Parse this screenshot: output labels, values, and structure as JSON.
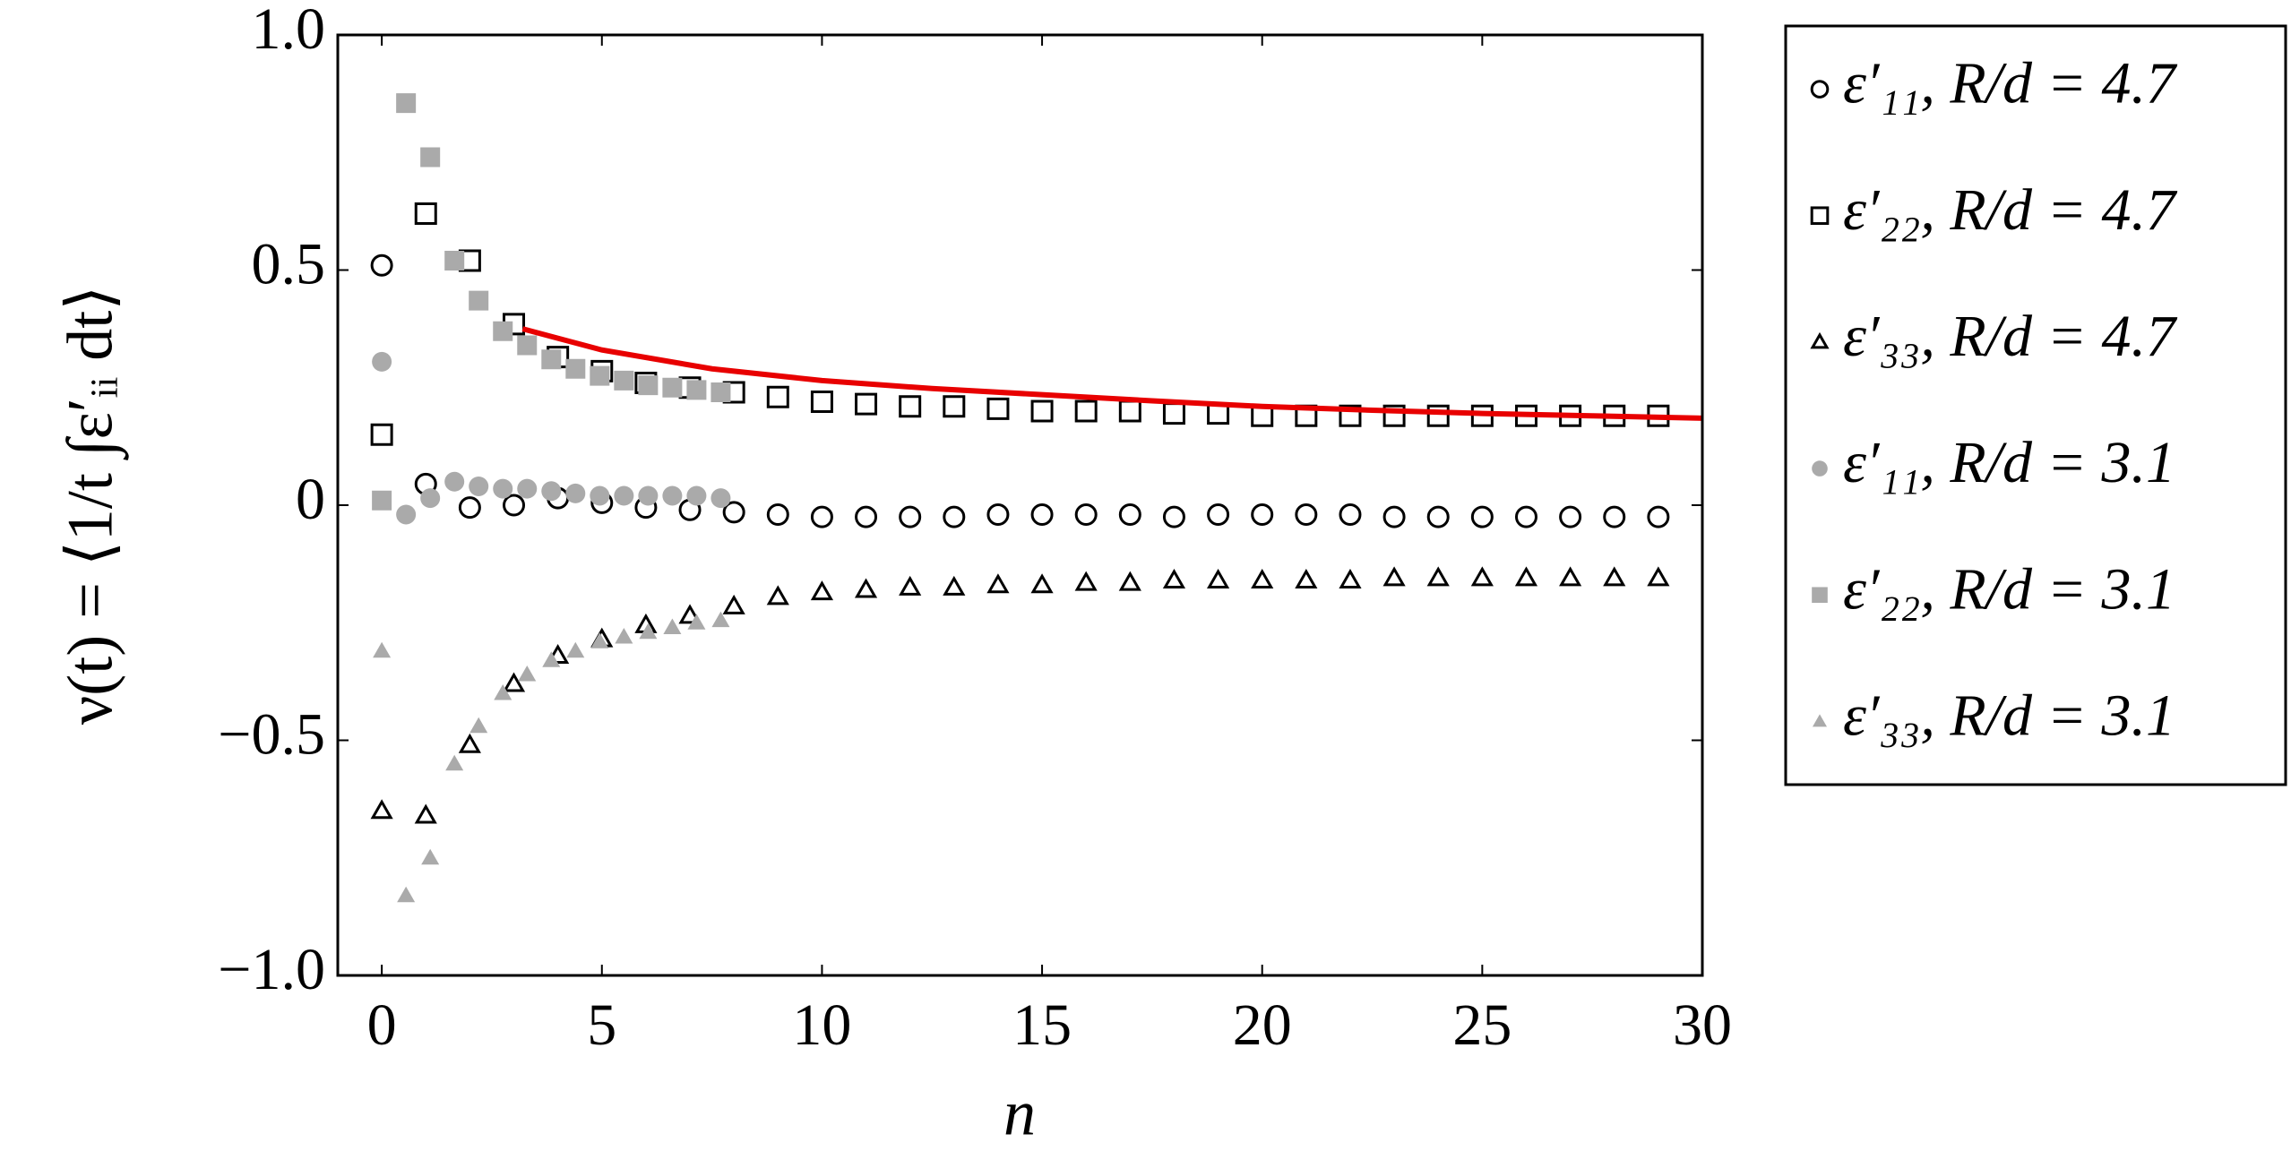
{
  "chart_data": {
    "type": "scatter",
    "x_label": "n",
    "y_label": "ν(t) = ⟨1/t ∫ε′ᵢᵢ dt⟩",
    "xlim": [
      -1,
      30
    ],
    "ylim": [
      -1,
      1
    ],
    "xticks": [
      0,
      5,
      10,
      15,
      20,
      25,
      30
    ],
    "yticks": [
      {
        "value": -1,
        "label": "−1.0"
      },
      {
        "value": -0.5,
        "label": "−0.5"
      },
      0,
      0.5,
      {
        "value": 1,
        "label": "1.0"
      }
    ],
    "legend": "outside-right",
    "series": [
      {
        "name": "ε′₁₁, R/d = 4.7",
        "marker": "circle",
        "filled": false,
        "color": "#000000",
        "x": [
          0,
          1,
          2,
          3,
          4,
          5,
          6,
          7,
          8,
          9,
          10,
          11,
          12,
          13,
          14,
          15,
          16,
          17,
          18,
          19,
          20,
          21,
          22,
          23,
          24,
          25,
          26,
          27,
          28,
          29
        ],
        "values": [
          0.51,
          0.045,
          -0.005,
          0,
          0.015,
          0.005,
          -0.005,
          -0.01,
          -0.015,
          -0.02,
          -0.025,
          -0.025,
          -0.025,
          -0.025,
          -0.02,
          -0.02,
          -0.02,
          -0.02,
          -0.025,
          -0.02,
          -0.02,
          -0.02,
          -0.02,
          -0.025,
          -0.025,
          -0.025,
          -0.025,
          -0.025,
          -0.025,
          -0.025
        ]
      },
      {
        "name": "ε′₂₂, R/d = 4.7",
        "marker": "square",
        "filled": false,
        "color": "#000000",
        "x": [
          0,
          1,
          2,
          3,
          4,
          5,
          6,
          7,
          8,
          9,
          10,
          11,
          12,
          13,
          14,
          15,
          16,
          17,
          18,
          19,
          20,
          21,
          22,
          23,
          24,
          25,
          26,
          27,
          28,
          29
        ],
        "values": [
          0.15,
          0.62,
          0.52,
          0.385,
          0.315,
          0.285,
          0.26,
          0.25,
          0.24,
          0.23,
          0.22,
          0.215,
          0.21,
          0.21,
          0.205,
          0.2,
          0.2,
          0.2,
          0.195,
          0.195,
          0.19,
          0.19,
          0.19,
          0.19,
          0.19,
          0.19,
          0.19,
          0.19,
          0.19,
          0.19
        ]
      },
      {
        "name": "ε′₃₃, R/d = 4.7",
        "marker": "triangle",
        "filled": false,
        "color": "#000000",
        "x": [
          0,
          1,
          2,
          3,
          4,
          5,
          6,
          7,
          8,
          9,
          10,
          11,
          12,
          13,
          14,
          15,
          16,
          17,
          18,
          19,
          20,
          21,
          22,
          23,
          24,
          25,
          26,
          27,
          28,
          29
        ],
        "values": [
          -0.65,
          -0.66,
          -0.51,
          -0.38,
          -0.32,
          -0.285,
          -0.255,
          -0.235,
          -0.215,
          -0.195,
          -0.185,
          -0.18,
          -0.175,
          -0.175,
          -0.17,
          -0.17,
          -0.165,
          -0.165,
          -0.16,
          -0.16,
          -0.16,
          -0.16,
          -0.16,
          -0.155,
          -0.155,
          -0.155,
          -0.155,
          -0.155,
          -0.155,
          -0.155
        ]
      },
      {
        "name": "ε′₁₁, R/d = 3.1",
        "marker": "circle",
        "filled": true,
        "color": "#aaaaaa",
        "x": [
          0,
          0.55,
          1.1,
          1.65,
          2.2,
          2.75,
          3.3,
          3.85,
          4.4,
          4.95,
          5.5,
          6.05,
          6.6,
          7.15,
          7.7
        ],
        "values": [
          0.305,
          -0.02,
          0.015,
          0.05,
          0.04,
          0.035,
          0.035,
          0.03,
          0.025,
          0.02,
          0.02,
          0.02,
          0.02,
          0.02,
          0.015
        ]
      },
      {
        "name": "ε′₂₂, R/d = 3.1",
        "marker": "square",
        "filled": true,
        "color": "#aaaaaa",
        "x": [
          0,
          0.55,
          1.1,
          1.65,
          2.2,
          2.75,
          3.3,
          3.85,
          4.4,
          4.95,
          5.5,
          6.05,
          6.6,
          7.15,
          7.7
        ],
        "values": [
          0.01,
          0.855,
          0.74,
          0.52,
          0.435,
          0.37,
          0.34,
          0.31,
          0.29,
          0.275,
          0.265,
          0.255,
          0.25,
          0.245,
          0.24
        ]
      },
      {
        "name": "ε′₃₃, R/d = 3.1",
        "marker": "triangle",
        "filled": true,
        "color": "#aaaaaa",
        "x": [
          0,
          0.55,
          1.1,
          1.65,
          2.2,
          2.75,
          3.3,
          3.85,
          4.4,
          4.95,
          5.5,
          6.05,
          6.6,
          7.15,
          7.7
        ],
        "values": [
          -0.31,
          -0.83,
          -0.75,
          -0.55,
          -0.47,
          -0.4,
          -0.36,
          -0.33,
          -0.31,
          -0.29,
          -0.28,
          -0.27,
          -0.26,
          -0.25,
          -0.245
        ]
      },
      {
        "marker": "line",
        "color": "#e80000",
        "x": [
          3.2,
          5,
          7.5,
          10,
          12.5,
          15,
          17.5,
          20,
          22.5,
          25,
          27.5,
          30
        ],
        "values": [
          0.375,
          0.33,
          0.29,
          0.265,
          0.248,
          0.235,
          0.222,
          0.21,
          0.202,
          0.195,
          0.19,
          0.185
        ]
      }
    ]
  }
}
